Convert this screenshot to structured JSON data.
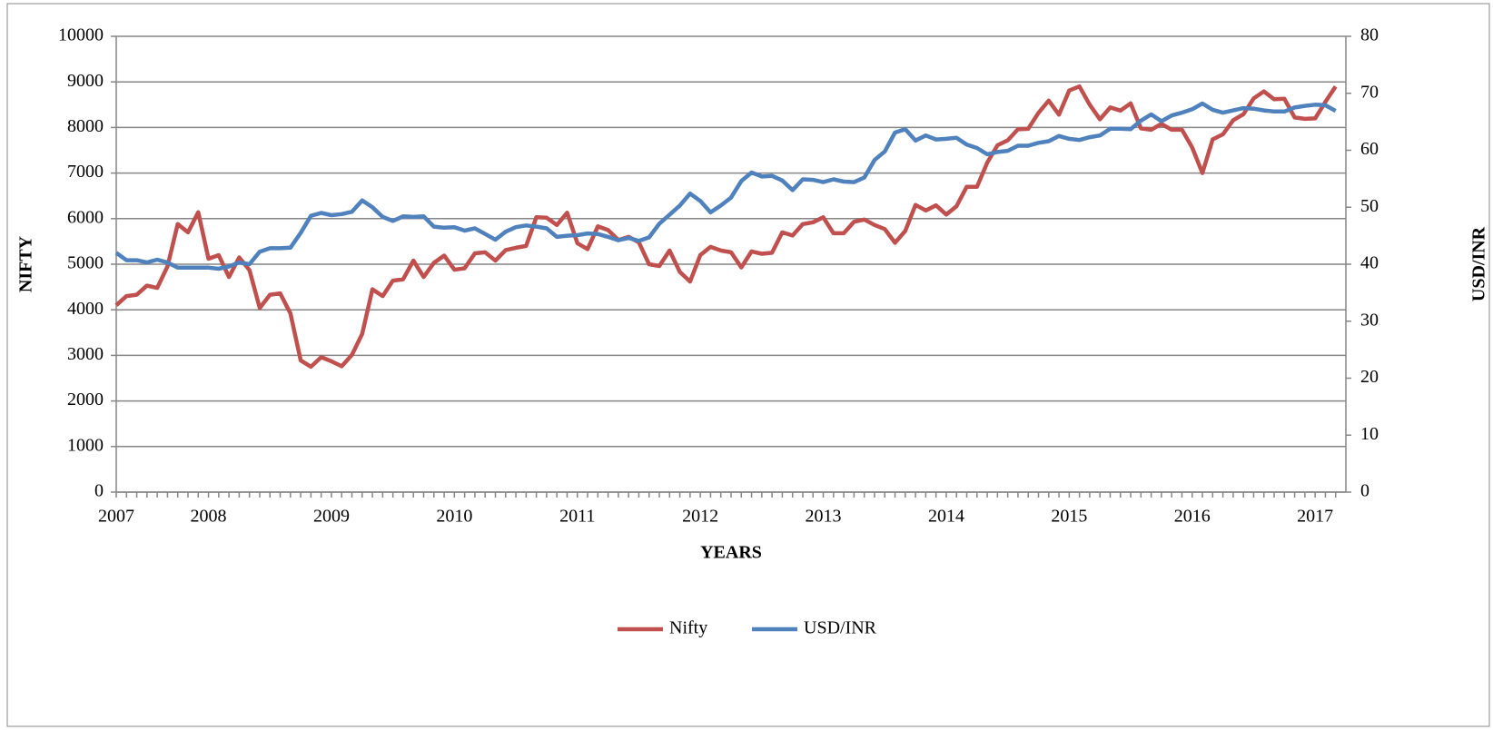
{
  "chart_data": {
    "type": "line",
    "x_label": "YEARS",
    "y_label": "NIFTY",
    "y2_label": "USD/INR",
    "categories": [
      "2007",
      null,
      null,
      null,
      null,
      null,
      null,
      null,
      null,
      "2008",
      null,
      null,
      null,
      null,
      null,
      null,
      null,
      null,
      null,
      null,
      null,
      "2009",
      null,
      null,
      null,
      null,
      null,
      null,
      null,
      null,
      null,
      null,
      null,
      "2010",
      null,
      null,
      null,
      null,
      null,
      null,
      null,
      null,
      null,
      null,
      null,
      "2011",
      null,
      null,
      null,
      null,
      null,
      null,
      null,
      null,
      null,
      null,
      null,
      "2012",
      null,
      null,
      null,
      null,
      null,
      null,
      null,
      null,
      null,
      null,
      null,
      "2013",
      null,
      null,
      null,
      null,
      null,
      null,
      null,
      null,
      null,
      null,
      null,
      "2014",
      null,
      null,
      null,
      null,
      null,
      null,
      null,
      null,
      null,
      null,
      null,
      "2015",
      null,
      null,
      null,
      null,
      null,
      null,
      null,
      null,
      null,
      null,
      null,
      "2016",
      null,
      null,
      null,
      null,
      null,
      null,
      null,
      null,
      null,
      null,
      null,
      "2017",
      null,
      null
    ],
    "series": [
      {
        "name": "Nifty",
        "color": "#c0504d",
        "values": [
          4100,
          4300,
          4330,
          4530,
          4480,
          4950,
          5880,
          5700,
          6140,
          5120,
          5200,
          4720,
          5150,
          4870,
          4040,
          4330,
          4360,
          3920,
          2890,
          2750,
          2960,
          2870,
          2760,
          3010,
          3470,
          4450,
          4300,
          4640,
          4670,
          5080,
          4720,
          5030,
          5190,
          4880,
          4910,
          5240,
          5260,
          5080,
          5310,
          5360,
          5400,
          6030,
          6020,
          5860,
          6130,
          5460,
          5330,
          5830,
          5750,
          5530,
          5600,
          5480,
          5000,
          4960,
          5300,
          4830,
          4620,
          5200,
          5380,
          5300,
          5260,
          4930,
          5280,
          5230,
          5250,
          5700,
          5630,
          5880,
          5920,
          6030,
          5680,
          5680,
          5930,
          5980,
          5860,
          5770,
          5470,
          5730,
          6300,
          6180,
          6290,
          6090,
          6270,
          6700,
          6700,
          7230,
          7610,
          7720,
          7960,
          7970,
          8320,
          8590,
          8280,
          8810,
          8900,
          8500,
          8180,
          8440,
          8370,
          8530,
          7980,
          7950,
          8080,
          7950,
          7950,
          7560,
          7000,
          7740,
          7850,
          8160,
          8290,
          8640,
          8790,
          8620,
          8630,
          8220,
          8190,
          8200,
          8560,
          8900
        ]
      },
      {
        "name": "USD/INR",
        "color": "#4f81bd",
        "axis": "y2",
        "values": [
          42,
          40.7,
          40.7,
          40.3,
          40.8,
          40.3,
          39.4,
          39.4,
          39.4,
          39.4,
          39.2,
          39.6,
          40.3,
          40,
          42.2,
          42.8,
          42.8,
          42.9,
          45.5,
          48.5,
          49,
          48.6,
          48.8,
          49.2,
          51.2,
          50,
          48.3,
          47.6,
          48.4,
          48.3,
          48.4,
          46.6,
          46.4,
          46.5,
          45.9,
          46.3,
          45.3,
          44.3,
          45.7,
          46.5,
          46.8,
          46.6,
          46.3,
          44.8,
          45,
          45.1,
          45.4,
          45.3,
          44.8,
          44.2,
          44.6,
          44.1,
          44.7,
          47.1,
          48.7,
          50.3,
          52.4,
          51.1,
          49.1,
          50.3,
          51.7,
          54.6,
          56.1,
          55.4,
          55.5,
          54.7,
          53,
          54.9,
          54.8,
          54.4,
          54.9,
          54.5,
          54.4,
          55.2,
          58.3,
          59.8,
          63.1,
          63.7,
          61.7,
          62.6,
          61.9,
          62,
          62.2,
          61,
          60.4,
          59.3,
          59.7,
          59.9,
          60.8,
          60.8,
          61.3,
          61.6,
          62.5,
          62,
          61.8,
          62.3,
          62.6,
          63.8,
          63.8,
          63.7,
          65.2,
          66.3,
          65.1,
          66.1,
          66.6,
          67.2,
          68.2,
          67.1,
          66.6,
          67,
          67.4,
          67.3,
          67,
          66.8,
          66.8,
          67.5,
          67.8,
          68,
          67.9,
          66.9
        ]
      }
    ],
    "ylim": [
      0,
      10000
    ],
    "yticks": [
      0,
      1000,
      2000,
      3000,
      4000,
      5000,
      6000,
      7000,
      8000,
      9000,
      10000
    ],
    "y2lim": [
      0,
      80
    ],
    "y2ticks": [
      0,
      10,
      20,
      30,
      40,
      50,
      60,
      70,
      80
    ],
    "grid": true,
    "legend": "bottom"
  }
}
